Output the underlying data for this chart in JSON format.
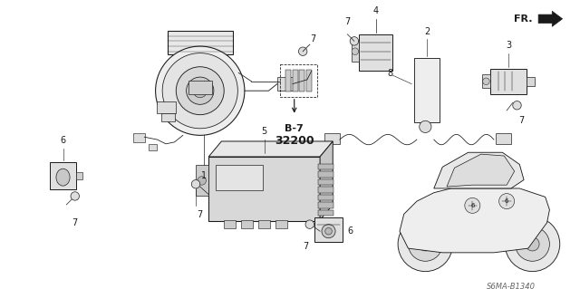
{
  "bg_color": "#ffffff",
  "diagram_code": "S6MA-B1340",
  "fr_label": "FR.",
  "b7_label": "B-7\n32200",
  "dark": "#1a1a1a",
  "gray": "#666666",
  "label_fs": 7,
  "lw": 0.7,
  "figsize": [
    6.4,
    3.19
  ],
  "dpi": 100
}
